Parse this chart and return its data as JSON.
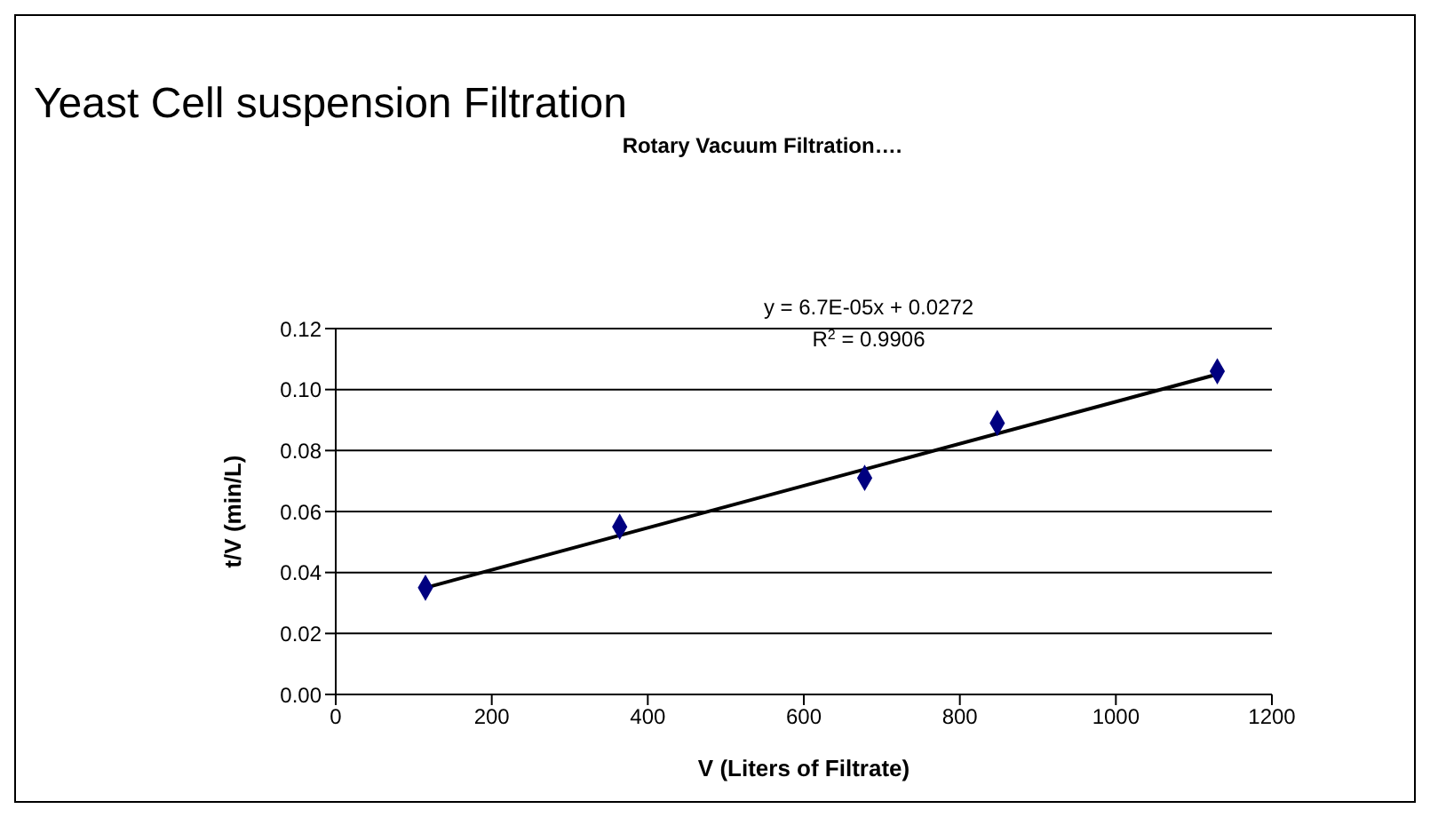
{
  "chart_data": {
    "type": "scatter",
    "title": "Yeast Cell suspension Filtration",
    "subtitle": "Rotary Vacuum Filtration….",
    "xlabel": "V (Liters of Filtrate)",
    "ylabel": "t/V (min/L)",
    "series": [
      {
        "color": "#000080",
        "marker": "diamond",
        "x": [
          115,
          364,
          678,
          848,
          1130
        ],
        "values": [
          0.035,
          0.055,
          0.071,
          0.089,
          0.106
        ]
      },
      {
        "type": "line",
        "color": "#000000",
        "marker": "none",
        "x": [
          115,
          1130
        ],
        "values": [
          0.035,
          0.105
        ]
      }
    ],
    "annotations": [
      "y = 6.7E-05x + 0.0272",
      "R$^{2}$ = 0.9906"
    ],
    "xlim": [
      0,
      1200
    ],
    "xticks": [
      0,
      200,
      400,
      600,
      800,
      1000,
      1200
    ],
    "ylim": [
      0,
      0.12
    ],
    "yticks": [
      {
        "value": 0,
        "label": "0.00"
      },
      0.02,
      0.04,
      0.06,
      0.08,
      {
        "value": 0.1,
        "label": "0.10"
      },
      0.12
    ],
    "grid": "y"
  }
}
